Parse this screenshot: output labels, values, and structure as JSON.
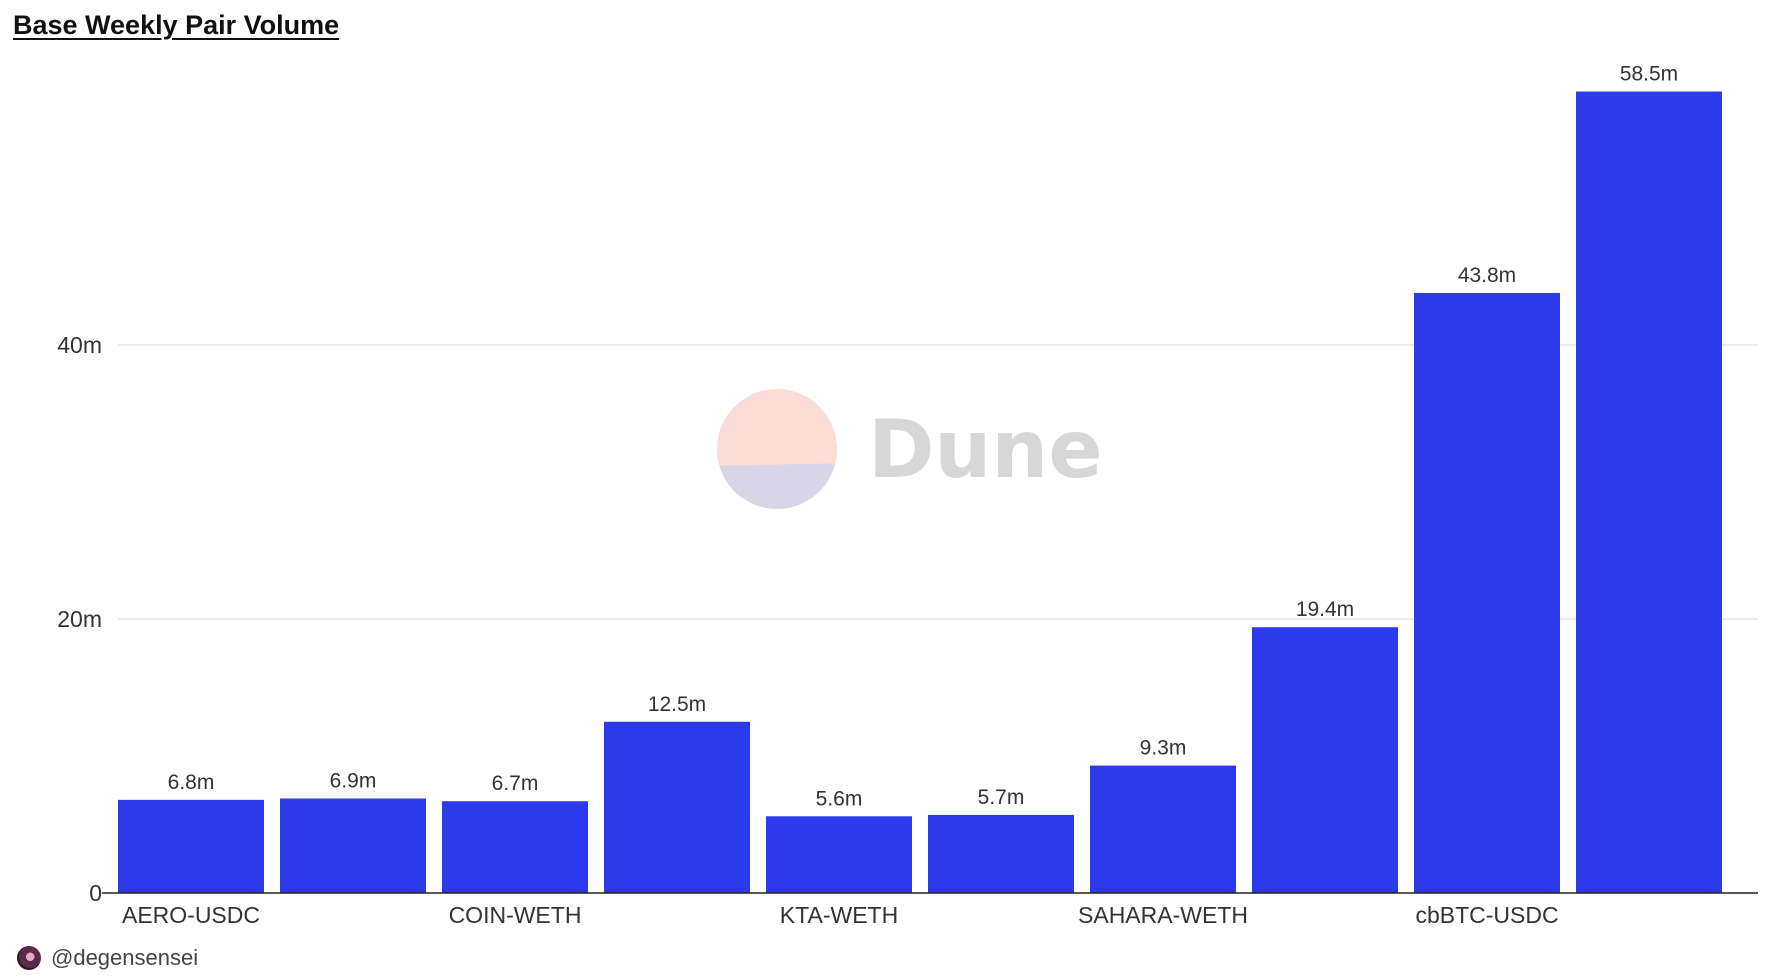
{
  "header": {
    "title": "Base Weekly Pair Volume"
  },
  "watermark": {
    "text": "Dune",
    "logo_colors": {
      "top": "#fbdcd6",
      "bottom": "#d8d6e6"
    }
  },
  "footer": {
    "author": "@degensensei",
    "avatar_icon": "user-avatar-icon"
  },
  "colors": {
    "bar": "#2c3ae9",
    "grid": "#e6e6e6",
    "axis": "#222222",
    "text": "#333333",
    "watermark_text": "#d7d7d7"
  },
  "chart_data": {
    "type": "bar",
    "title": "Base Weekly Pair Volume",
    "xlabel": "",
    "ylabel": "",
    "categories": [
      "AERO-USDC",
      "",
      "COIN-WETH",
      "",
      "KTA-WETH",
      "",
      "SAHARA-WETH",
      "",
      "cbBTC-USDC",
      ""
    ],
    "values": [
      6.8,
      6.9,
      6.7,
      12.5,
      5.6,
      5.7,
      9.3,
      19.4,
      43.8,
      58.5
    ],
    "data_labels": [
      "6.8m",
      "6.9m",
      "6.7m",
      "12.5m",
      "5.6m",
      "5.7m",
      "9.3m",
      "19.4m",
      "43.8m",
      "58.5m"
    ],
    "value_unit": "m",
    "ylim": [
      0,
      60
    ],
    "y_ticks": [
      0,
      20,
      40
    ],
    "y_tick_labels": [
      "0",
      "20m",
      "40m"
    ],
    "grid": true,
    "legend": false
  }
}
